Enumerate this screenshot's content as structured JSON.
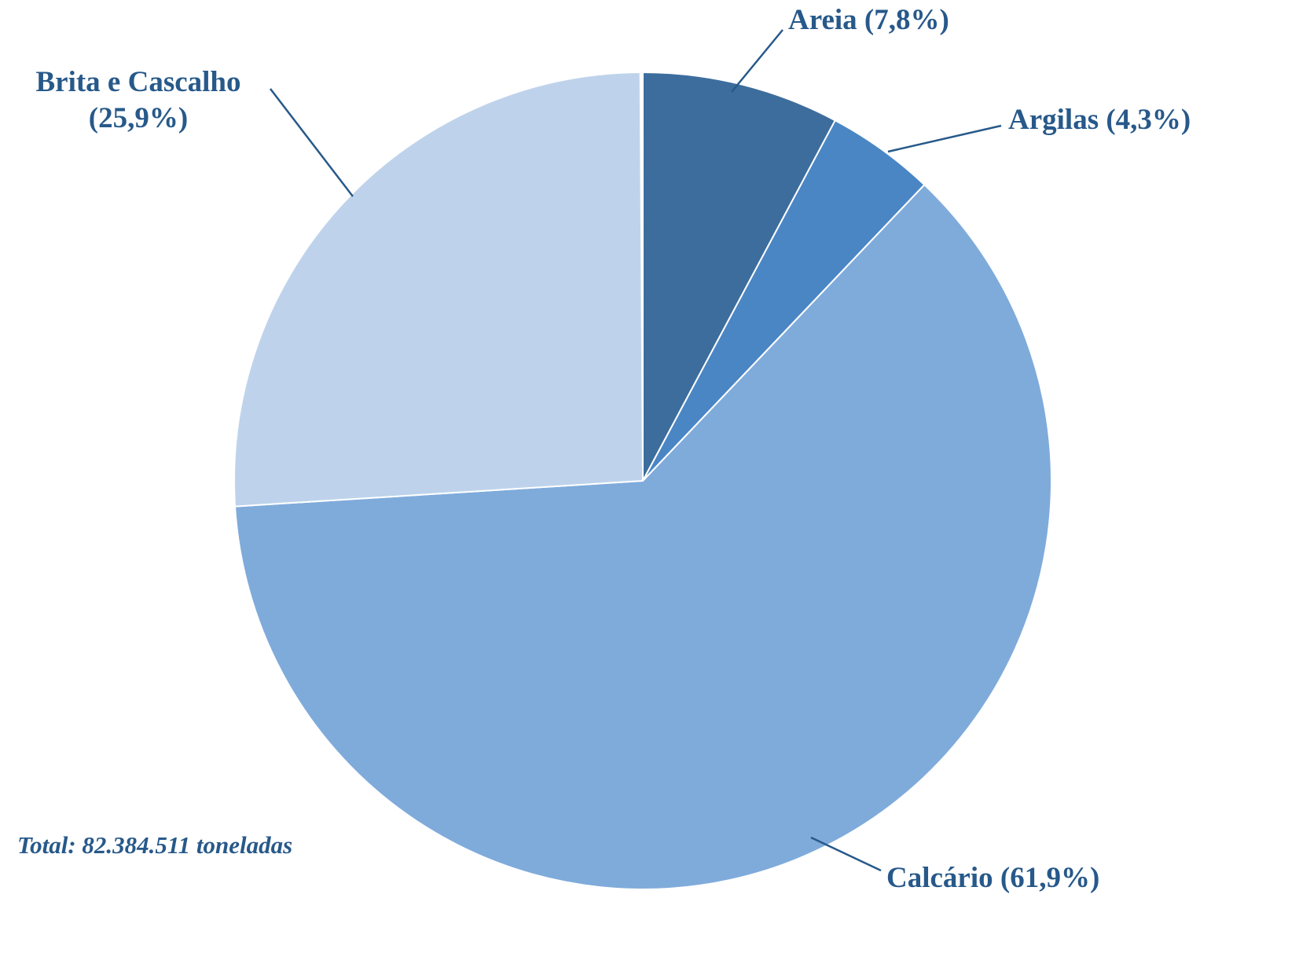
{
  "chart_data": {
    "type": "pie",
    "title": "",
    "unit": "toneladas",
    "total_label": "Total: 82.384.511 toneladas",
    "total_value": "82.384.511",
    "start_angle_deg": 0,
    "direction": "clockwise",
    "legend_position": "outside-callouts",
    "slices": [
      {
        "id": "areia",
        "name": "Areia",
        "value": 7.8,
        "label": "Areia (7,8%)",
        "color": "#3d6d9d"
      },
      {
        "id": "argilas",
        "name": "Argilas",
        "value": 4.3,
        "label": "Argilas (4,3%)",
        "color": "#4a86c4"
      },
      {
        "id": "calcario",
        "name": "Calcário",
        "value": 61.9,
        "label": "Calcário (61,9%)",
        "color": "#7fabdb"
      },
      {
        "id": "brita",
        "name": "Brita e Cascalho",
        "value": 25.9,
        "label": "Brita e Cascalho (25,9%)",
        "label_line1": "Brita e Cascalho",
        "label_line2": "(25,9%)",
        "color": "#bed3eb"
      }
    ],
    "colors": {
      "label_text": "#27598a",
      "slice_separator": "#ffffff"
    }
  }
}
